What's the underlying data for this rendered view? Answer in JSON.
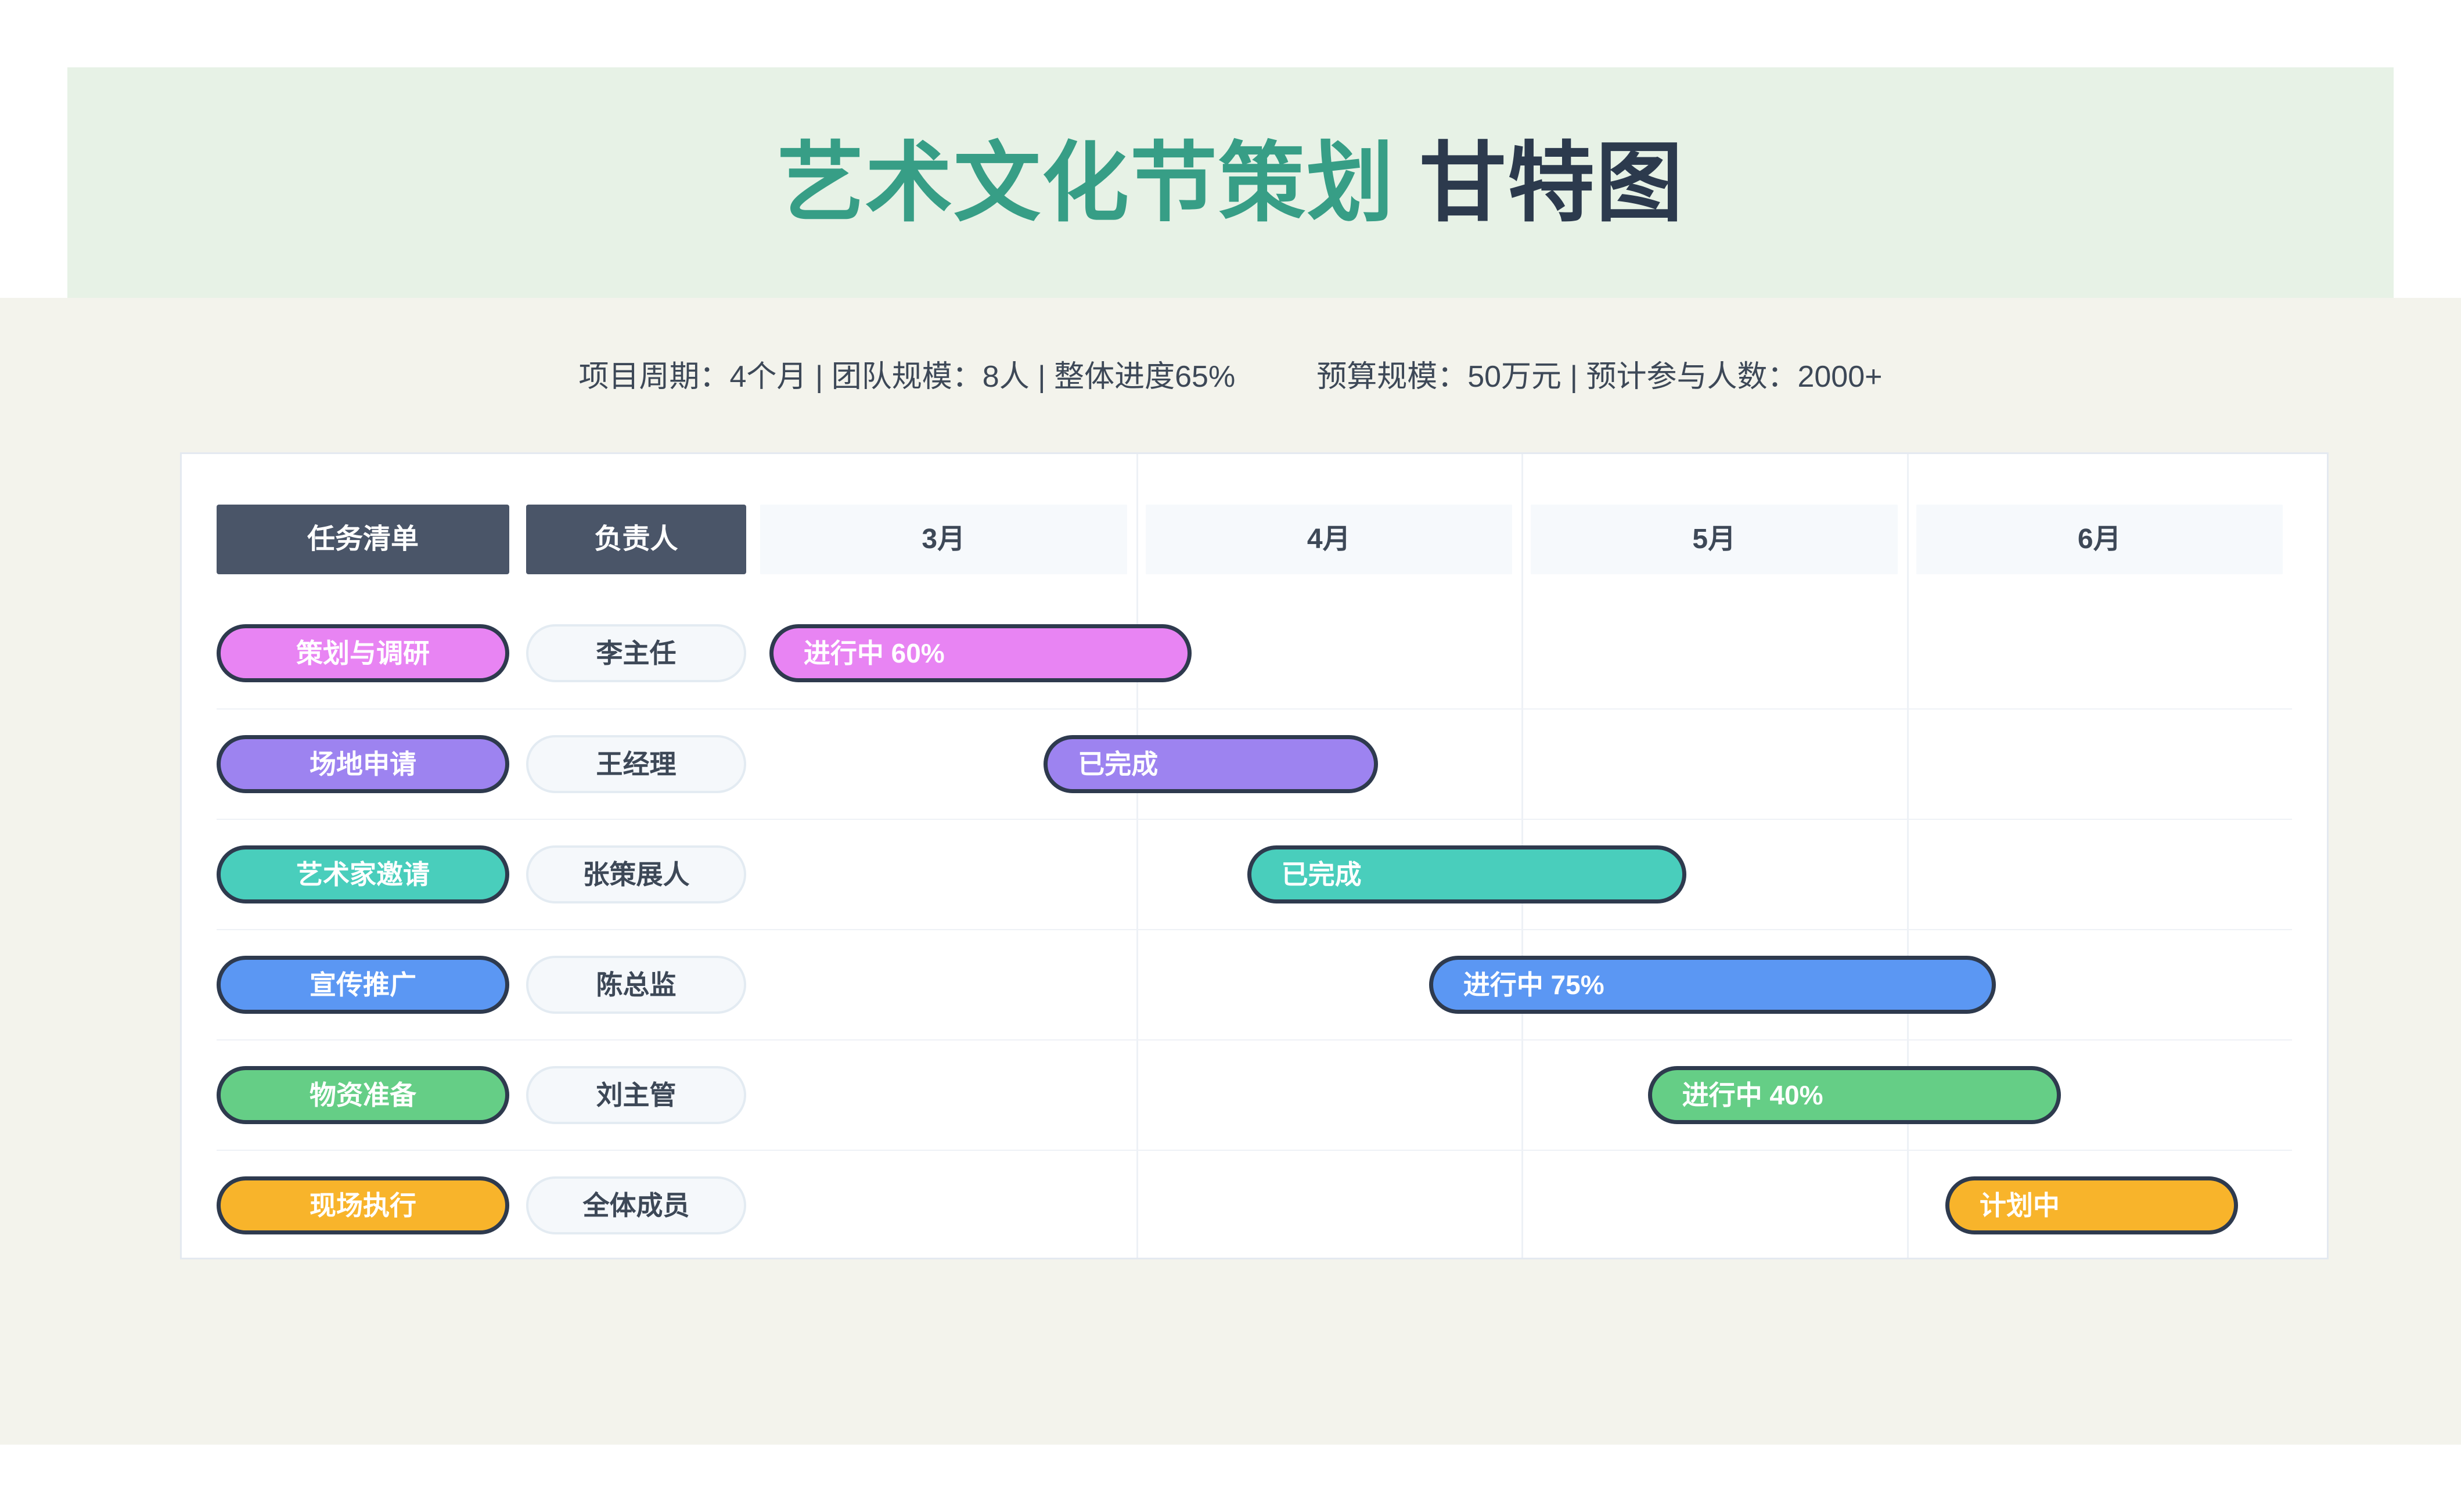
{
  "header": {
    "title_primary": "艺术文化节策划",
    "title_secondary": "甘特图"
  },
  "stats": {
    "left": "项目周期：4个月 | 团队规模：8人 | 整体进度65%",
    "right": "预算规模：50万元 | 预计参与人数：2000+"
  },
  "table": {
    "columns": {
      "task": "任务清单",
      "owner": "负责人"
    },
    "months": [
      "3月",
      "4月",
      "5月",
      "6月"
    ]
  },
  "chart_data": {
    "type": "bar",
    "subtype": "gantt",
    "title": "艺术文化节策划 甘特图",
    "x_axis": {
      "unit": "month",
      "labels": [
        "3月",
        "4月",
        "5月",
        "6月"
      ],
      "range_months": [
        3,
        7
      ]
    },
    "legend": "none",
    "grid": "vertical-month-lines",
    "tasks": [
      {
        "task": "策划与调研",
        "owner": "李主任",
        "status": "进行中 60%",
        "progress_pct": 60,
        "start_month": 3.0,
        "end_month": 4.1,
        "color": "#e884f3",
        "bar_start_pct": 1.2,
        "bar_width_pct": 27.4
      },
      {
        "task": "场地申请",
        "owner": "王经理",
        "status": "已完成",
        "progress_pct": 100,
        "start_month": 3.8,
        "end_month": 4.6,
        "color": "#9d83f0",
        "bar_start_pct": 19.0,
        "bar_width_pct": 21.7
      },
      {
        "task": "艺术家邀请",
        "owner": "张策展人",
        "status": "已完成",
        "progress_pct": 100,
        "start_month": 4.3,
        "end_month": 5.4,
        "color": "#49cebc",
        "bar_start_pct": 32.2,
        "bar_width_pct": 28.5
      },
      {
        "task": "宣传推广",
        "owner": "陈总监",
        "status": "进行中 75%",
        "progress_pct": 75,
        "start_month": 4.8,
        "end_month": 6.2,
        "color": "#5b97f3",
        "bar_start_pct": 44.0,
        "bar_width_pct": 36.8
      },
      {
        "task": "物资准备",
        "owner": "刘主管",
        "status": "进行中 40%",
        "progress_pct": 40,
        "start_month": 5.3,
        "end_month": 6.4,
        "color": "#65ce86",
        "bar_start_pct": 58.2,
        "bar_width_pct": 26.8
      },
      {
        "task": "现场执行",
        "owner": "全体成员",
        "status": "计划中",
        "progress_pct": 0,
        "start_month": 6.1,
        "end_month": 6.9,
        "color": "#f8b42b",
        "bar_start_pct": 77.5,
        "bar_width_pct": 19.0
      }
    ]
  },
  "colors": {
    "accent_teal": "#379e86",
    "title_dark": "#2c3a4d",
    "band_bg": "#e7f2e6",
    "section_bg": "#f3f3ec",
    "header_cell_bg": "#4a5568",
    "month_cell_bg": "#f6f9fc",
    "pill_border": "#2e3a4e",
    "owner_pill_bg": "#f5f8fb",
    "owner_pill_border": "#e3ebf2",
    "grid_line": "#edf1f6",
    "text_dark": "#3d4857"
  }
}
